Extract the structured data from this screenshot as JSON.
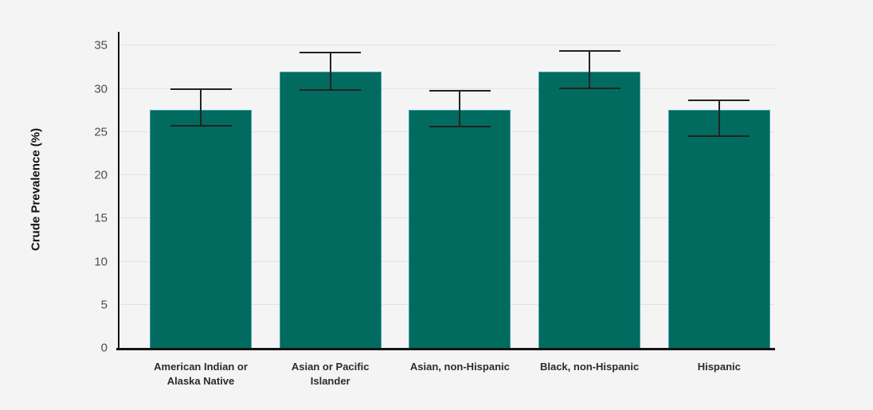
{
  "chart_data": {
    "type": "bar",
    "title": "",
    "xlabel": "",
    "ylabel": "Crude Prevalence (%)",
    "ylim": [
      0,
      36.6
    ],
    "yticks": [
      0,
      5,
      10,
      15,
      20,
      25,
      30,
      35
    ],
    "grid": true,
    "legend": "none",
    "categories": [
      "American Indian or Alaska Native",
      "Asian or Pacific Islander",
      "Asian, non-Hispanic",
      "Black, non-Hispanic",
      "Hispanic"
    ],
    "series": [
      {
        "name": "Crude Prevalence (%)",
        "values": [
          27.6,
          32.0,
          27.6,
          32.0,
          27.6
        ],
        "ci_low": [
          25.7,
          29.9,
          25.6,
          30.1,
          24.5
        ],
        "ci_high": [
          30.0,
          34.2,
          29.8,
          34.4,
          28.7
        ]
      }
    ],
    "colors": {
      "bar_fill": "#006B5E",
      "bar_border": "#46a0b4",
      "error_bar": "#222222",
      "axis_line": "#141414",
      "gridline": "#e3e3e4",
      "background": "#f4f4f5",
      "tick_text": "#4d4d4d",
      "category_text": "#2b2b2b"
    }
  }
}
